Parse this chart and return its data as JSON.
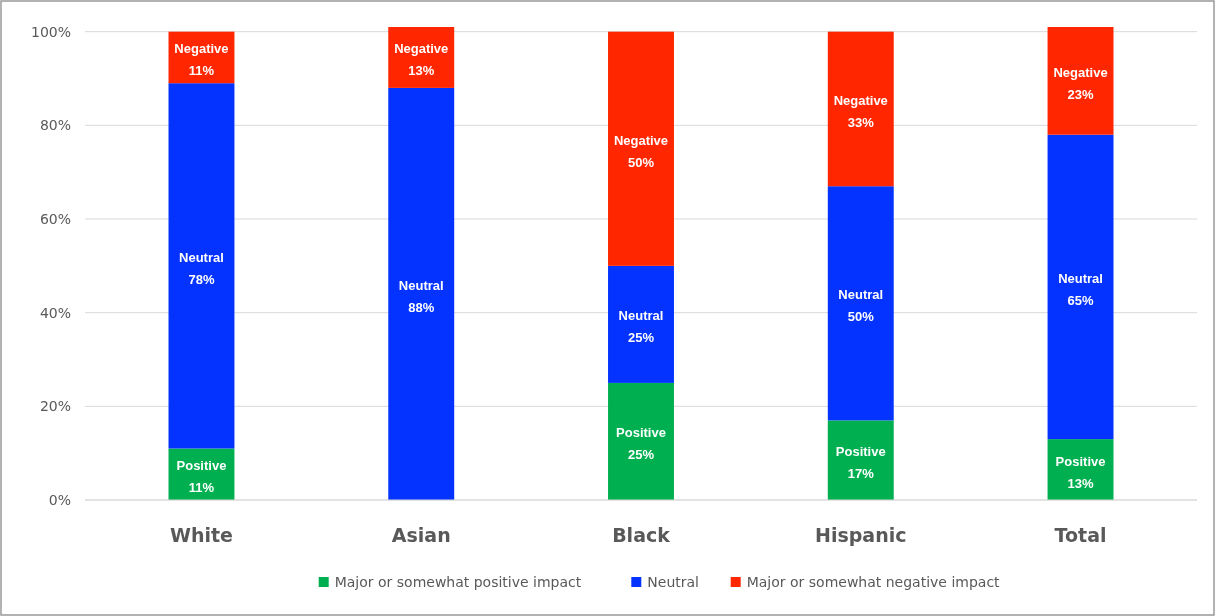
{
  "chart_data": {
    "type": "bar",
    "stacked": true,
    "categories": [
      "White",
      "Asian",
      "Black",
      "Hispanic",
      "Total"
    ],
    "series": [
      {
        "name": "Major or somewhat positive impact",
        "color": "#00b050",
        "values": [
          11,
          0,
          25,
          17,
          13
        ],
        "value_labels": [
          "Positive\n11%",
          null,
          "Positive\n25%",
          "Positive\n17%",
          "Positive\n13%"
        ]
      },
      {
        "name": "Neutral",
        "color": "#0433ff",
        "values": [
          78,
          88,
          25,
          50,
          65
        ],
        "value_labels": [
          "Neutral\n78%",
          "Neutral\n88%",
          "Neutral\n25%",
          "Neutral\n50%",
          "Neutral\n65%"
        ]
      },
      {
        "name": "Major or somewhat negative impact",
        "color": "#ff2600",
        "values": [
          11,
          13,
          50,
          33,
          23
        ],
        "value_labels": [
          "Negative\n11%",
          "Negative\n13%",
          "Negative\n50%",
          "Negative\n33%",
          "Negative\n23%"
        ]
      }
    ],
    "ylim": [
      0,
      101
    ],
    "yticks": [
      {
        "value": 0,
        "label": "0%"
      },
      {
        "value": 20,
        "label": "20%"
      },
      {
        "value": 40,
        "label": "40%"
      },
      {
        "value": 60,
        "label": "60%"
      },
      {
        "value": 80,
        "label": "80%"
      },
      {
        "value": 100,
        "label": "100%"
      }
    ],
    "grid": "y",
    "legend": "bottom"
  }
}
